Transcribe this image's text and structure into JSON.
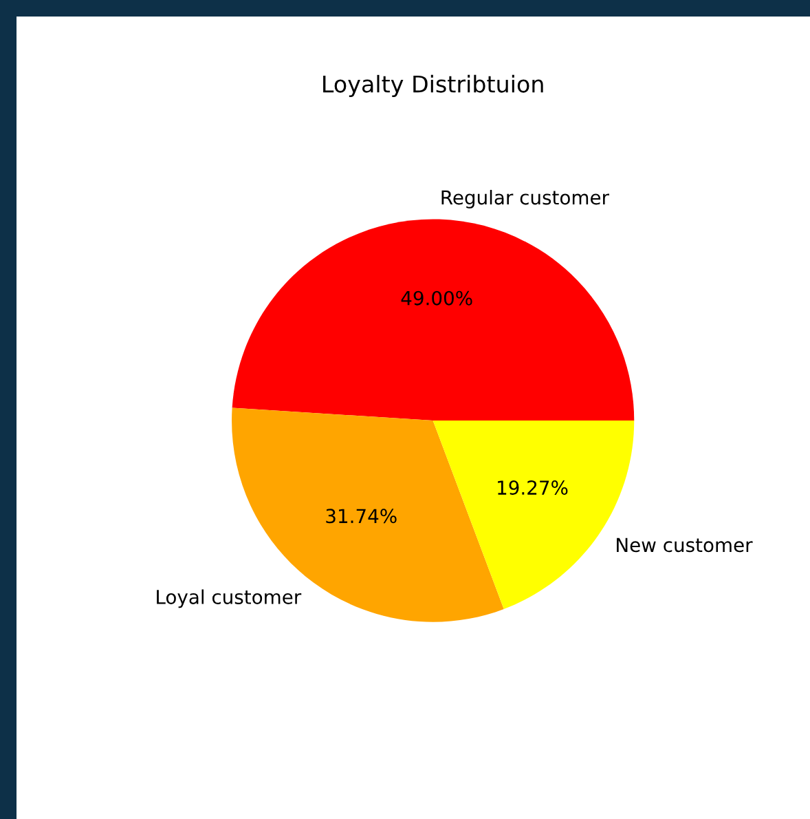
{
  "chart_data": {
    "type": "pie",
    "title": "Loyalty Distribtuion",
    "categories": [
      "Regular customer",
      "Loyal customer",
      "New customer"
    ],
    "values": [
      49.0,
      31.74,
      19.27
    ],
    "value_labels": [
      "49.00%",
      "31.74%",
      "19.27%"
    ],
    "colors": [
      "#ff0000",
      "#ffa500",
      "#ffff00"
    ],
    "legend": false
  }
}
